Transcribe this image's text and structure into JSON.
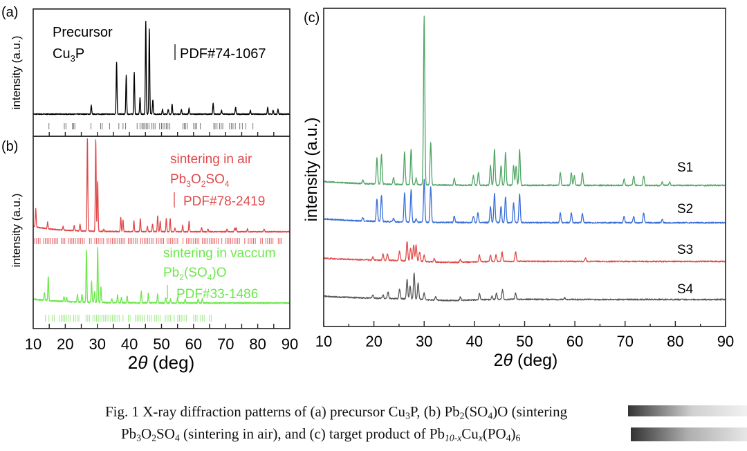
{
  "chart_data": [
    {
      "panel": "(a)",
      "type": "line",
      "xlabel": "",
      "ylabel": "intensity (a.u.)",
      "xlim": [
        10,
        90
      ],
      "x_ticks": [
        15,
        20,
        25,
        30,
        35,
        40,
        45,
        50,
        55,
        60,
        65,
        70,
        75,
        80,
        85
      ],
      "annotation_lines": [
        "Precursor",
        "Cu3P"
      ],
      "reference_label": "PDF#74-1067",
      "series": [
        {
          "name": "Cu3P precursor",
          "color": "#000000",
          "baseline": 0.06,
          "peaks": [
            [
              28.1,
              0.09
            ],
            [
              36.0,
              0.54
            ],
            [
              39.0,
              0.4
            ],
            [
              41.5,
              0.43
            ],
            [
              43.3,
              0.17
            ],
            [
              45.1,
              0.96
            ],
            [
              46.2,
              0.88
            ],
            [
              47.3,
              0.15
            ],
            [
              50.3,
              0.05
            ],
            [
              52.1,
              0.05
            ],
            [
              53.3,
              0.1
            ],
            [
              56.2,
              0.05
            ],
            [
              58.6,
              0.06
            ],
            [
              66.1,
              0.11
            ],
            [
              68.7,
              0.04
            ],
            [
              73.1,
              0.07
            ],
            [
              77.7,
              0.04
            ],
            [
              83.1,
              0.07
            ],
            [
              84.8,
              0.04
            ],
            [
              86.3,
              0.05
            ]
          ]
        }
      ],
      "reference_ticks": [
        14.9,
        19.7,
        20.2,
        22.2,
        22.6,
        23.0,
        28.0,
        31.0,
        31.5,
        33.8,
        36.7,
        38.0,
        38.8,
        42.4,
        43.3,
        43.9,
        44.3,
        44.7,
        45.2,
        45.6,
        46.1,
        47.0,
        47.4,
        48.0,
        49.4,
        50.0,
        50.5,
        51.0,
        51.5,
        52.0,
        52.6,
        56.7,
        57.1,
        57.5,
        58.0,
        60.0,
        60.5,
        61.0,
        62.1,
        66.3,
        66.7,
        67.3,
        68.1,
        68.6,
        69.1,
        71.2,
        71.8,
        72.3,
        73.0,
        74.4,
        75.2,
        76.3,
        78.5
      ]
    },
    {
      "panel": "(b)",
      "type": "line",
      "xlabel": "2θ (deg)",
      "ylabel": "intensity (a.u.)",
      "xlim": [
        10,
        90
      ],
      "x_ticks": [
        10,
        20,
        30,
        40,
        50,
        60,
        70,
        80,
        90
      ],
      "series": [
        {
          "name": "sintering in air",
          "phase": "Pb3O2SO4",
          "reference_label": "PDF#78-2419",
          "color": "#e0484a",
          "baseline": 0.52,
          "peaks": [
            [
              10.8,
              0.14
            ],
            [
              14.5,
              0.05
            ],
            [
              19.3,
              0.03
            ],
            [
              22.8,
              0.04
            ],
            [
              24.6,
              0.05
            ],
            [
              26.9,
              0.7
            ],
            [
              29.5,
              0.7
            ],
            [
              30.1,
              0.38
            ],
            [
              32.0,
              0.02
            ],
            [
              37.3,
              0.11
            ],
            [
              38.0,
              0.09
            ],
            [
              41.4,
              0.08
            ],
            [
              43.4,
              0.1
            ],
            [
              45.6,
              0.04
            ],
            [
              47.2,
              0.06
            ],
            [
              48.8,
              0.12
            ],
            [
              49.6,
              0.08
            ],
            [
              51.5,
              0.1
            ],
            [
              52.7,
              0.1
            ],
            [
              54.2,
              0.03
            ],
            [
              56.6,
              0.05
            ],
            [
              58.6,
              0.08
            ],
            [
              62.5,
              0.03
            ],
            [
              64.5,
              0.02
            ],
            [
              70.4,
              0.02
            ],
            [
              72.8,
              0.03
            ],
            [
              73.3,
              0.03
            ],
            [
              76.8,
              0.02
            ],
            [
              82.0,
              0.02
            ]
          ]
        },
        {
          "name": "sintering in vaccum",
          "phase": "Pb2(SO4)O",
          "reference_label": "PDF#33-1486",
          "color": "#6be84a",
          "baseline": 0.05,
          "peaks": [
            [
              13.5,
              0.06
            ],
            [
              14.7,
              0.18
            ],
            [
              19.6,
              0.04
            ],
            [
              20.4,
              0.03
            ],
            [
              23.8,
              0.06
            ],
            [
              25.2,
              0.06
            ],
            [
              26.6,
              0.4
            ],
            [
              28.2,
              0.16
            ],
            [
              29.1,
              0.08
            ],
            [
              30.1,
              0.42
            ],
            [
              31.1,
              0.12
            ],
            [
              34.5,
              0.03
            ],
            [
              36.3,
              0.06
            ],
            [
              37.5,
              0.04
            ],
            [
              39.3,
              0.05
            ],
            [
              43.7,
              0.09
            ],
            [
              45.9,
              0.07
            ],
            [
              48.8,
              0.07
            ],
            [
              51.3,
              0.04
            ],
            [
              52.8,
              0.03
            ],
            [
              55.0,
              0.04
            ],
            [
              57.4,
              0.03
            ],
            [
              61.4,
              0.03
            ],
            [
              62.7,
              0.03
            ]
          ]
        }
      ]
    },
    {
      "panel": "(c)",
      "type": "line",
      "xlabel": "2θ (deg)",
      "ylabel": "intensity (a.u.)",
      "xlim": [
        10,
        90
      ],
      "x_ticks": [
        10,
        20,
        30,
        40,
        50,
        60,
        70,
        80,
        90
      ],
      "x_minor_ticks": [
        15,
        25,
        35,
        45,
        55,
        65,
        75,
        85
      ],
      "series": [
        {
          "name": "S1",
          "color": "#4fa564",
          "baseline": 0.55,
          "peaks": [
            [
              17.8,
              0.01
            ],
            [
              20.6,
              0.08
            ],
            [
              21.5,
              0.09
            ],
            [
              23.9,
              0.02
            ],
            [
              26.1,
              0.1
            ],
            [
              27.4,
              0.11
            ],
            [
              28.4,
              0.02
            ],
            [
              30.0,
              0.52
            ],
            [
              31.3,
              0.13
            ],
            [
              36.0,
              0.02
            ],
            [
              39.8,
              0.03
            ],
            [
              40.8,
              0.04
            ],
            [
              43.2,
              0.06
            ],
            [
              44.0,
              0.11
            ],
            [
              45.3,
              0.06
            ],
            [
              46.2,
              0.1
            ],
            [
              47.8,
              0.06
            ],
            [
              48.3,
              0.06
            ],
            [
              49.0,
              0.11
            ],
            [
              57.1,
              0.04
            ],
            [
              59.3,
              0.04
            ],
            [
              59.9,
              0.03
            ],
            [
              61.5,
              0.04
            ],
            [
              69.8,
              0.02
            ],
            [
              71.7,
              0.03
            ],
            [
              73.7,
              0.03
            ],
            [
              77.4,
              0.01
            ],
            [
              78.9,
              0.01
            ]
          ]
        },
        {
          "name": "S2",
          "color": "#3a6fd8",
          "baseline": 0.43,
          "peaks": [
            [
              17.8,
              0.01
            ],
            [
              20.6,
              0.07
            ],
            [
              21.5,
              0.08
            ],
            [
              23.9,
              0.01
            ],
            [
              26.1,
              0.09
            ],
            [
              27.4,
              0.1
            ],
            [
              28.4,
              0.01
            ],
            [
              30.0,
              0.13
            ],
            [
              31.3,
              0.11
            ],
            [
              36.0,
              0.02
            ],
            [
              39.8,
              0.02
            ],
            [
              40.7,
              0.03
            ],
            [
              43.2,
              0.05
            ],
            [
              44.0,
              0.09
            ],
            [
              45.3,
              0.05
            ],
            [
              46.2,
              0.08
            ],
            [
              47.8,
              0.06
            ],
            [
              49.0,
              0.09
            ],
            [
              57.1,
              0.03
            ],
            [
              59.3,
              0.03
            ],
            [
              61.5,
              0.03
            ],
            [
              69.8,
              0.02
            ],
            [
              71.7,
              0.02
            ],
            [
              73.7,
              0.03
            ],
            [
              77.4,
              0.01
            ]
          ]
        },
        {
          "name": "S3",
          "color": "#df4d4a",
          "baseline": 0.3,
          "peaks": [
            [
              19.8,
              0.01
            ],
            [
              21.8,
              0.02
            ],
            [
              22.7,
              0.02
            ],
            [
              25.1,
              0.03
            ],
            [
              26.6,
              0.06
            ],
            [
              27.3,
              0.04
            ],
            [
              27.9,
              0.05
            ],
            [
              28.4,
              0.05
            ],
            [
              29.1,
              0.03
            ],
            [
              30.0,
              0.02
            ],
            [
              32.0,
              0.01
            ],
            [
              37.2,
              0.01
            ],
            [
              41.0,
              0.02
            ],
            [
              43.2,
              0.02
            ],
            [
              44.3,
              0.02
            ],
            [
              45.5,
              0.03
            ],
            [
              48.2,
              0.03
            ],
            [
              62.1,
              0.01
            ]
          ]
        },
        {
          "name": "S4",
          "color": "#575757",
          "baseline": 0.17,
          "peaks": [
            [
              19.8,
              0.01
            ],
            [
              21.8,
              0.01
            ],
            [
              22.8,
              0.02
            ],
            [
              25.1,
              0.03
            ],
            [
              26.6,
              0.06
            ],
            [
              27.2,
              0.04
            ],
            [
              28.0,
              0.08
            ],
            [
              28.8,
              0.05
            ],
            [
              30.0,
              0.02
            ],
            [
              32.3,
              0.01
            ],
            [
              37.2,
              0.01
            ],
            [
              41.0,
              0.02
            ],
            [
              43.5,
              0.01
            ],
            [
              44.4,
              0.02
            ],
            [
              45.6,
              0.03
            ],
            [
              48.2,
              0.02
            ],
            [
              58.0,
              0.005
            ]
          ]
        }
      ]
    }
  ],
  "panels": {
    "a": {
      "label": "(a)",
      "ylabel": "intensity (a.u.)",
      "title1": "Precursor",
      "title2_main": "Cu",
      "title2_sub": "3",
      "title2_tail": "P",
      "ref": "PDF#74-1067"
    },
    "b": {
      "label": "(b)",
      "ylabel": "intensity (a.u.)",
      "air_title": "sintering in air",
      "air_formula": [
        "Pb",
        "3",
        "O",
        "2",
        "SO",
        "4"
      ],
      "air_ref": "PDF#78-2419",
      "vac_title": "sintering in vaccum",
      "vac_formula": [
        "Pb",
        "2",
        "(SO",
        "4",
        ")O"
      ],
      "vac_ref": "PDF#33-1486",
      "xlabel_pre": "2",
      "xlabel_theta": "θ",
      "xlabel_post": " (deg)",
      "x_tick_labels": [
        "10",
        "20",
        "30",
        "40",
        "50",
        "60",
        "70",
        "80",
        "90"
      ]
    },
    "c": {
      "label": "(c)",
      "ylabel": "intensity (a.u.)",
      "xlabel_pre": "2",
      "xlabel_theta": "θ",
      "xlabel_post": " (deg)",
      "x_tick_labels": [
        "10",
        "20",
        "30",
        "40",
        "50",
        "60",
        "70",
        "80",
        "90"
      ],
      "series_labels": [
        "S1",
        "S2",
        "S3",
        "S4"
      ]
    }
  },
  "caption": {
    "line1": [
      "Fig. 1 X-ray diffraction patterns of (a) precursor Cu",
      "3",
      "P, (b) Pb",
      "2",
      "(SO",
      "4",
      ")O (sintering"
    ],
    "line2": [
      "Pb",
      "3",
      "O",
      "2",
      "SO",
      "4",
      " (sintering in air), and (c) target product of Pb",
      "10-x",
      "Cu",
      "x",
      "(PO",
      "4",
      ")",
      "6"
    ]
  }
}
